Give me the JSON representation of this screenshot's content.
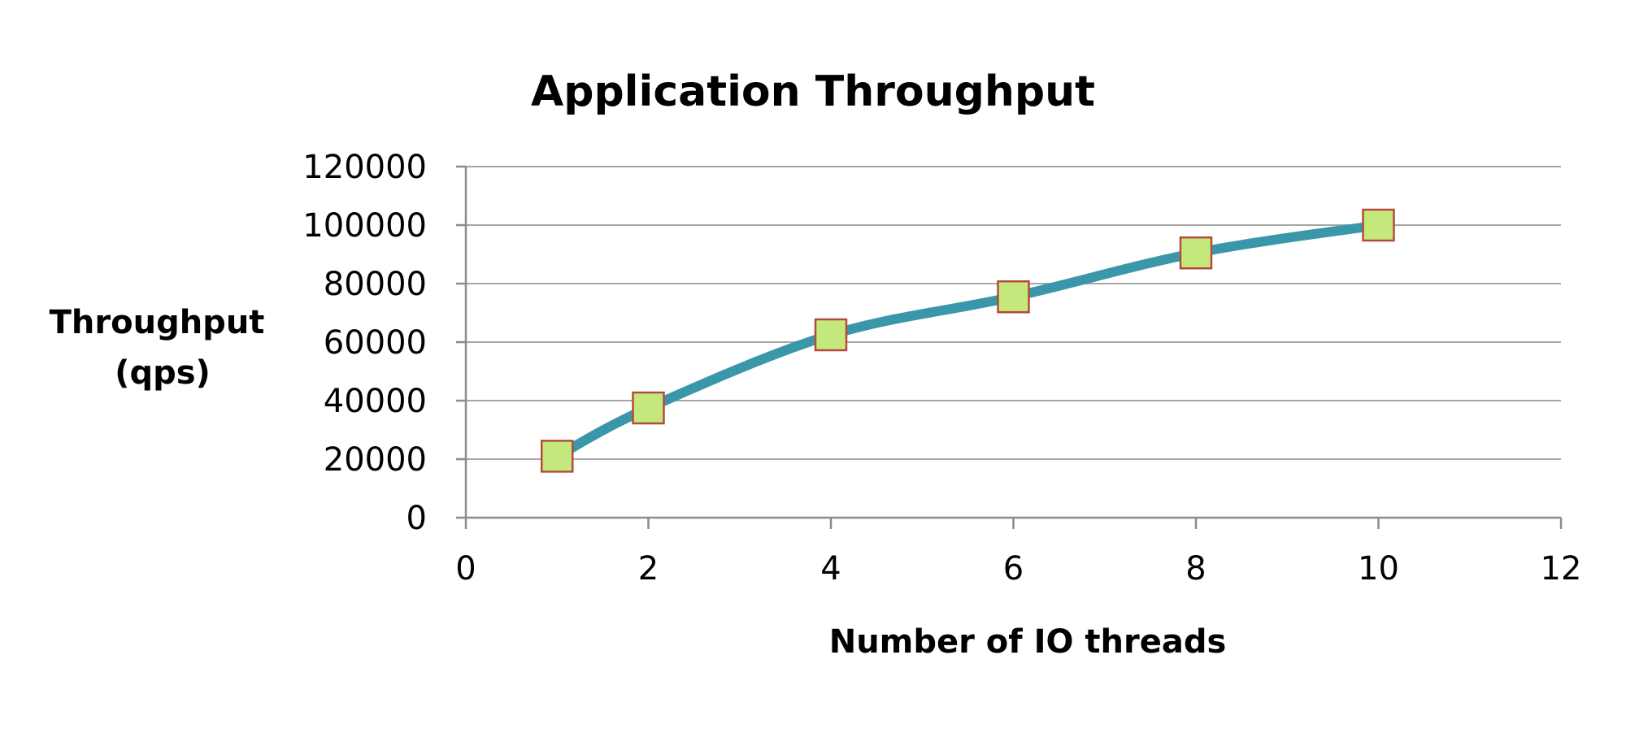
{
  "chart_data": {
    "type": "line",
    "title": "Application Throughput",
    "xlabel": "Number of IO threads",
    "ylabel_lines": [
      "Throughput",
      "(qps)"
    ],
    "xlim": [
      0,
      12
    ],
    "ylim": [
      0,
      120000
    ],
    "x_ticks": [
      0,
      2,
      4,
      6,
      8,
      10,
      12
    ],
    "y_ticks": [
      0,
      20000,
      40000,
      60000,
      80000,
      100000,
      120000
    ],
    "grid": {
      "horizontal": true,
      "vertical": false
    },
    "legend": "none",
    "smooth": true,
    "series": [
      {
        "x": [
          1,
          2,
          4,
          6,
          8,
          10
        ],
        "values": [
          21000,
          37500,
          62500,
          75500,
          90500,
          100000
        ],
        "line_color": "#3a97a9",
        "marker": "square",
        "marker_fill": "#c5e87c",
        "marker_stroke": "#b54a3c"
      }
    ]
  }
}
